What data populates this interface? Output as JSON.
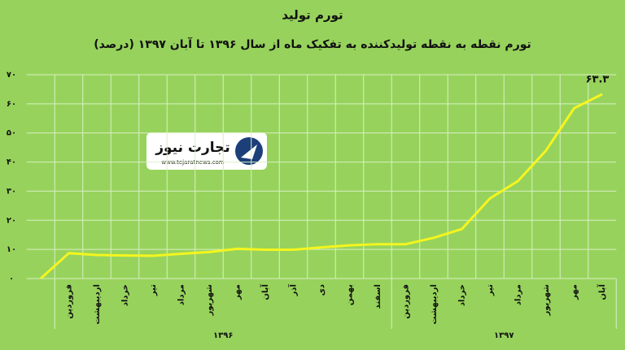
{
  "chart_data": {
    "type": "line",
    "title": "تورم تولید",
    "subtitle": "تورم نقطه به نقطه تولیدکننده به تفکیک ماه  از سال ۱۳۹۶ تا آبان ۱۳۹۷ (درصد)",
    "watermark": {
      "name": "تجارت نیوز",
      "url": "www.tejaratnews.com"
    },
    "categories": [
      null,
      "فروردین",
      "اردیبهشت",
      "خرداد",
      "تیر",
      "مرداد",
      "شهریور",
      "مهر",
      "آبان",
      "آذر",
      "دی",
      "بهمن",
      "اسفند",
      "فروردین",
      "اردیبهشت",
      "خرداد",
      "تیر",
      "مرداد",
      "شهریور",
      "مهر",
      "آبان"
    ],
    "category_groups": [
      {
        "label": "۱۳۹۶",
        "count": 12
      },
      {
        "label": "۱۳۹۷",
        "count": 8
      }
    ],
    "series": [
      {
        "color": "#f5f51e",
        "values": [
          0,
          8.7,
          8.1,
          7.9,
          7.8,
          8.5,
          9.1,
          10.2,
          9.9,
          9.9,
          10.7,
          11.4,
          11.8,
          11.8,
          14,
          17,
          27.5,
          33.5,
          44,
          58.5,
          63.3
        ],
        "value_labels": [
          null,
          null,
          null,
          null,
          null,
          null,
          null,
          null,
          null,
          null,
          null,
          null,
          null,
          null,
          null,
          null,
          null,
          null,
          null,
          null,
          "۶۳.۳"
        ]
      }
    ],
    "ylim": [
      0,
      70
    ],
    "yticks": [
      {
        "value": 0,
        "label": "۰"
      },
      {
        "value": 10,
        "label": "۱۰"
      },
      {
        "value": 20,
        "label": "۲۰"
      },
      {
        "value": 30,
        "label": "۳۰"
      },
      {
        "value": 40,
        "label": "۴۰"
      },
      {
        "value": 50,
        "label": "۵۰"
      },
      {
        "value": 60,
        "label": "۶۰"
      },
      {
        "value": 70,
        "label": "۷۰"
      }
    ],
    "grid": true
  }
}
